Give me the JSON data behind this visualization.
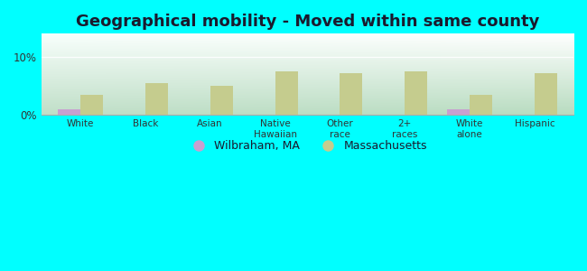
{
  "title": "Geographical mobility - Moved within same county",
  "categories": [
    "White",
    "Black",
    "Asian",
    "Native\nHawaiian",
    "Other\nrace",
    "2+\nraces",
    "White\nalone",
    "Hispanic"
  ],
  "wilbraham_values": [
    1.0,
    0.0,
    0.0,
    0.0,
    0.0,
    0.0,
    1.0,
    0.0
  ],
  "massachusetts_values": [
    3.5,
    5.5,
    5.0,
    7.5,
    7.2,
    7.5,
    3.5,
    7.2
  ],
  "wilbraham_color": "#c8a0d0",
  "massachusetts_color": "#c5cc8e",
  "background_color": "#00ffff",
  "gradient_top_left": "#f0faf0",
  "gradient_bottom_right": "#c8e8d0",
  "ylim": [
    0,
    14
  ],
  "yticks": [
    0,
    10
  ],
  "ytick_labels": [
    "0%",
    "10%"
  ],
  "bar_width": 0.35,
  "title_fontsize": 13,
  "legend_labels": [
    "Wilbraham, MA",
    "Massachusetts"
  ]
}
